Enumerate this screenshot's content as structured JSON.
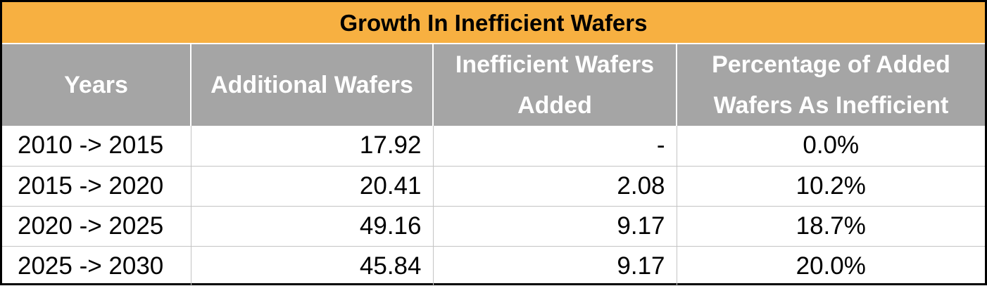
{
  "title": "Growth In Inefficient Wafers",
  "colors": {
    "title_background": "#f7b041",
    "header_background": "#a5a5a5",
    "header_text": "#ffffff",
    "grid_lines": "#c4c4c4"
  },
  "headers": [
    "Years",
    "Additional Wafers",
    "Inefficient Wafers Added",
    "Percentage of Added Wafers As Inefficient"
  ],
  "rows": [
    {
      "years": "2010 -> 2015",
      "additional": "17.92",
      "inefficient": "-",
      "percentage": "0.0%"
    },
    {
      "years": "2015 -> 2020",
      "additional": "20.41",
      "inefficient": "2.08",
      "percentage": "10.2%"
    },
    {
      "years": "2020 -> 2025",
      "additional": "49.16",
      "inefficient": "9.17",
      "percentage": "18.7%"
    },
    {
      "years": "2025 -> 2030",
      "additional": "45.84",
      "inefficient": "9.17",
      "percentage": "20.0%"
    }
  ]
}
